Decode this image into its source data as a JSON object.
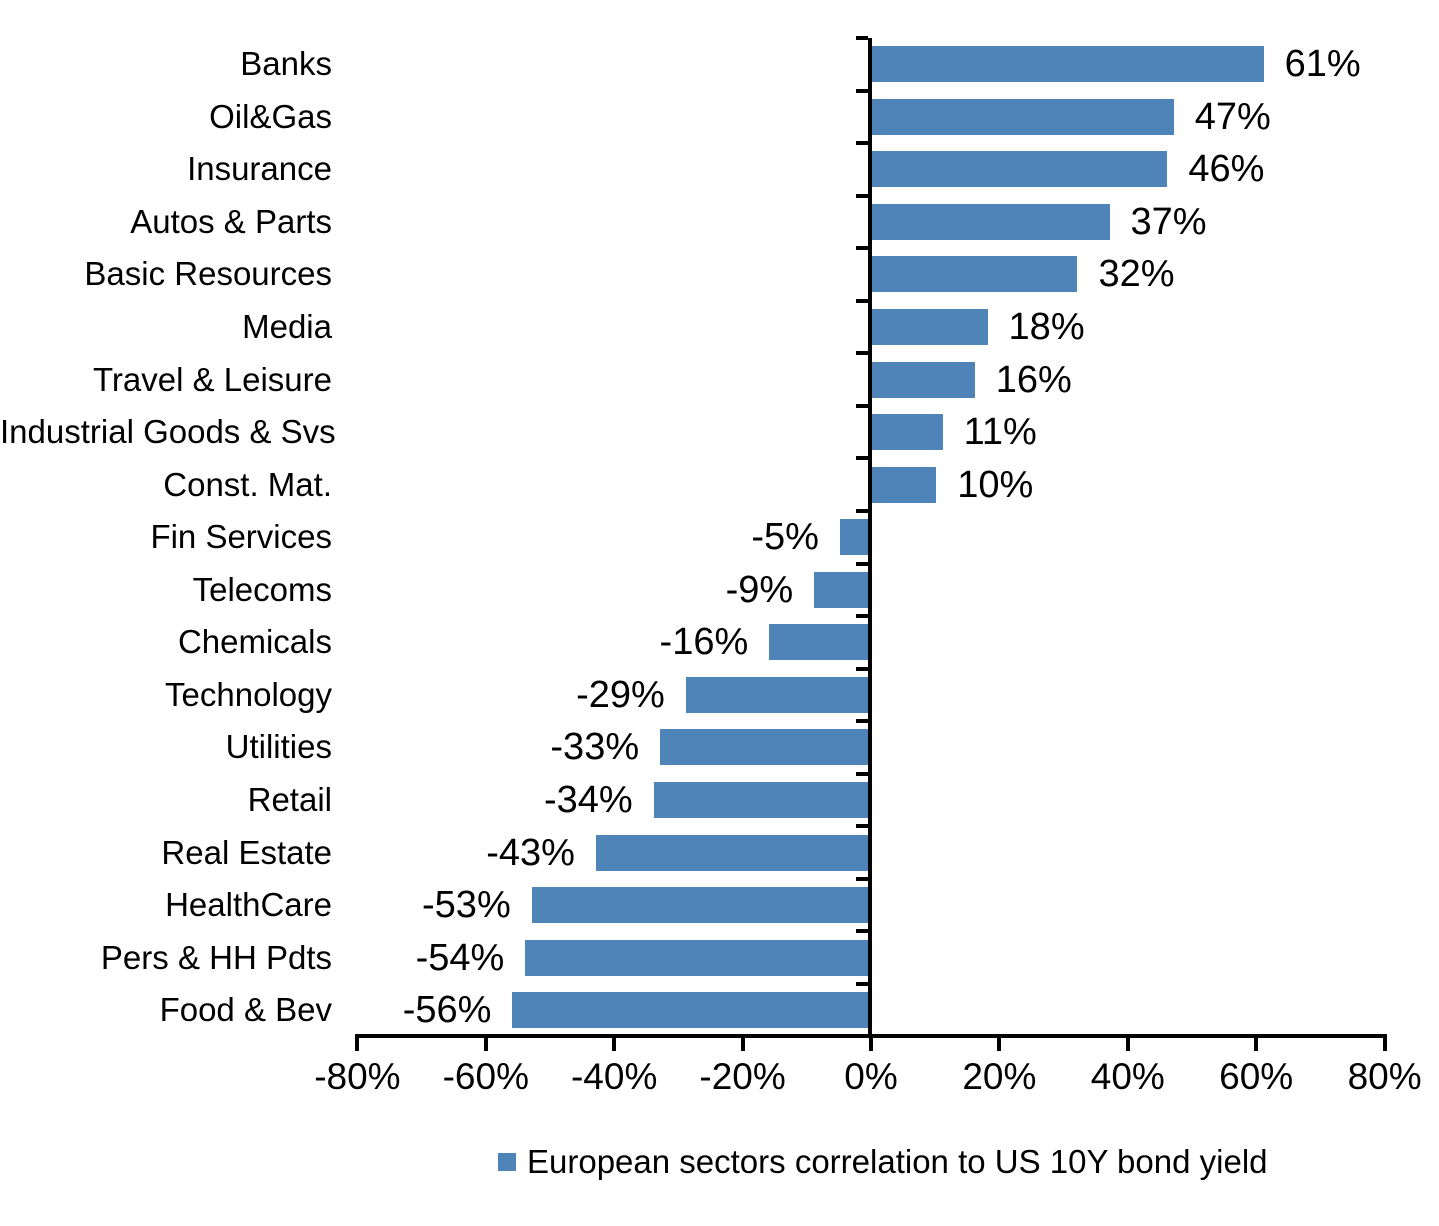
{
  "chart_data": {
    "type": "bar",
    "orientation": "horizontal",
    "title": "",
    "xlabel": "",
    "ylabel": "",
    "categories": [
      "Banks",
      "Oil&Gas",
      "Insurance",
      "Autos & Parts",
      "Basic Resources",
      "Media",
      "Travel & Leisure",
      "Industrial Goods & Svs",
      "Const. Mat.",
      "Fin Services",
      "Telecoms",
      "Chemicals",
      "Technology",
      "Utilities",
      "Retail",
      "Real Estate",
      "HealthCare",
      "Pers & HH Pdts",
      "Food & Bev"
    ],
    "values": [
      61,
      47,
      46,
      37,
      32,
      18,
      16,
      11,
      10,
      -5,
      -9,
      -16,
      -29,
      -33,
      -34,
      -43,
      -53,
      -54,
      -56
    ],
    "value_labels": [
      "61%",
      "47%",
      "46%",
      "37%",
      "32%",
      "18%",
      "16%",
      "11%",
      "10%",
      "-5%",
      "-9%",
      "-16%",
      "-29%",
      "-33%",
      "-34%",
      "-43%",
      "-53%",
      "-54%",
      "-56%"
    ],
    "xlim": [
      -80,
      80
    ],
    "x_ticks": [
      -80,
      -60,
      -40,
      -20,
      0,
      20,
      40,
      60,
      80
    ],
    "x_tick_labels": [
      "-80%",
      "-60%",
      "-40%",
      "-20%",
      "0%",
      "20%",
      "40%",
      "60%",
      "80%"
    ],
    "grid": false,
    "bar_color": "#4E84B8",
    "axis_color": "#000000",
    "legend": {
      "position": "bottom",
      "items": [
        {
          "label": "European sectors correlation to US 10Y bond yield",
          "color": "#4E84B8"
        }
      ]
    }
  }
}
